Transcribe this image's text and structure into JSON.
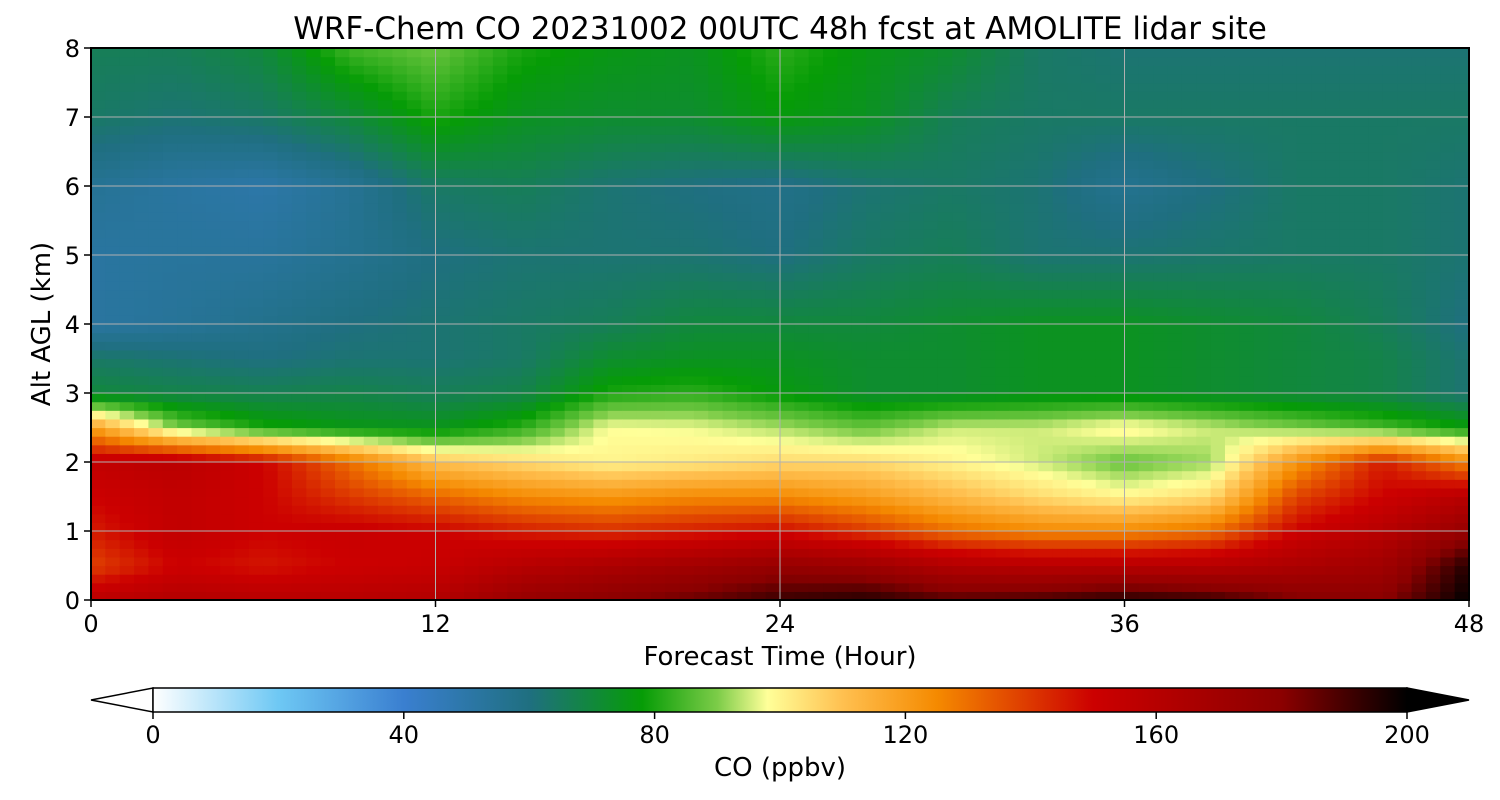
{
  "chart_data": {
    "type": "heatmap",
    "title": "WRF-Chem CO  20231002 00UTC 48h fcst at AMOLITE lidar site",
    "xlabel": "Forecast Time (Hour)",
    "ylabel": "Alt AGL (km)",
    "xlim": [
      0,
      48
    ],
    "ylim": [
      0,
      8
    ],
    "xticks": [
      0,
      12,
      24,
      36,
      48
    ],
    "yticks": [
      0,
      1,
      2,
      3,
      4,
      5,
      6,
      7,
      8
    ],
    "grid": true,
    "colorbar": {
      "label": "CO  (ppbv)",
      "range": [
        0,
        200
      ],
      "ticks": [
        0,
        40,
        80,
        120,
        160,
        200
      ],
      "extend": "both",
      "stops": [
        {
          "v": 0,
          "c": "#ffffff"
        },
        {
          "v": 20,
          "c": "#6ec8f4"
        },
        {
          "v": 40,
          "c": "#3a7fd0"
        },
        {
          "v": 60,
          "c": "#1f6f80"
        },
        {
          "v": 78,
          "c": "#069c06"
        },
        {
          "v": 90,
          "c": "#7ccc48"
        },
        {
          "v": 98,
          "c": "#ffff99"
        },
        {
          "v": 110,
          "c": "#ffc050"
        },
        {
          "v": 125,
          "c": "#f58a00"
        },
        {
          "v": 150,
          "c": "#cc0000"
        },
        {
          "v": 180,
          "c": "#8b0000"
        },
        {
          "v": 200,
          "c": "#000000"
        }
      ]
    },
    "x": [
      0,
      3,
      6,
      9,
      12,
      15,
      18,
      21,
      24,
      27,
      30,
      33,
      36,
      39,
      42,
      45,
      48
    ],
    "y": [
      0,
      0.5,
      1,
      1.5,
      2,
      2.5,
      3,
      3.5,
      4,
      5,
      6,
      7,
      8
    ],
    "z": [
      [
        158,
        162,
        160,
        160,
        162,
        175,
        180,
        185,
        192,
        195,
        188,
        190,
        195,
        192,
        182,
        180,
        200
      ],
      [
        138,
        150,
        146,
        150,
        152,
        160,
        165,
        170,
        175,
        172,
        162,
        160,
        160,
        160,
        165,
        170,
        195
      ],
      [
        145,
        155,
        150,
        152,
        150,
        145,
        142,
        145,
        148,
        140,
        130,
        125,
        125,
        130,
        150,
        160,
        175
      ],
      [
        150,
        155,
        150,
        140,
        132,
        125,
        122,
        125,
        125,
        120,
        112,
        105,
        100,
        105,
        138,
        150,
        160
      ],
      [
        155,
        158,
        150,
        130,
        110,
        105,
        100,
        102,
        105,
        105,
        100,
        95,
        88,
        92,
        122,
        145,
        125
      ],
      [
        120,
        90,
        80,
        76,
        75,
        82,
        98,
        97,
        93,
        88,
        95,
        95,
        100,
        95,
        90,
        85,
        78
      ],
      [
        70,
        68,
        67,
        68,
        66,
        68,
        80,
        82,
        77,
        72,
        72,
        74,
        74,
        72,
        70,
        68,
        62
      ],
      [
        64,
        62,
        60,
        62,
        62,
        64,
        72,
        74,
        74,
        72,
        72,
        74,
        74,
        72,
        70,
        68,
        62
      ],
      [
        52,
        54,
        57,
        60,
        62,
        64,
        66,
        70,
        70,
        70,
        72,
        74,
        74,
        72,
        70,
        66,
        60
      ],
      [
        52,
        53,
        53,
        56,
        60,
        62,
        62,
        62,
        60,
        64,
        66,
        62,
        62,
        63,
        64,
        64,
        62
      ],
      [
        55,
        52,
        50,
        55,
        64,
        66,
        62,
        60,
        58,
        62,
        64,
        62,
        56,
        60,
        64,
        64,
        62
      ],
      [
        64,
        62,
        64,
        70,
        80,
        74,
        72,
        72,
        77,
        74,
        66,
        64,
        64,
        64,
        64,
        64,
        64
      ],
      [
        66,
        66,
        70,
        84,
        88,
        80,
        76,
        74,
        82,
        76,
        72,
        64,
        62,
        62,
        62,
        62,
        62
      ]
    ]
  }
}
